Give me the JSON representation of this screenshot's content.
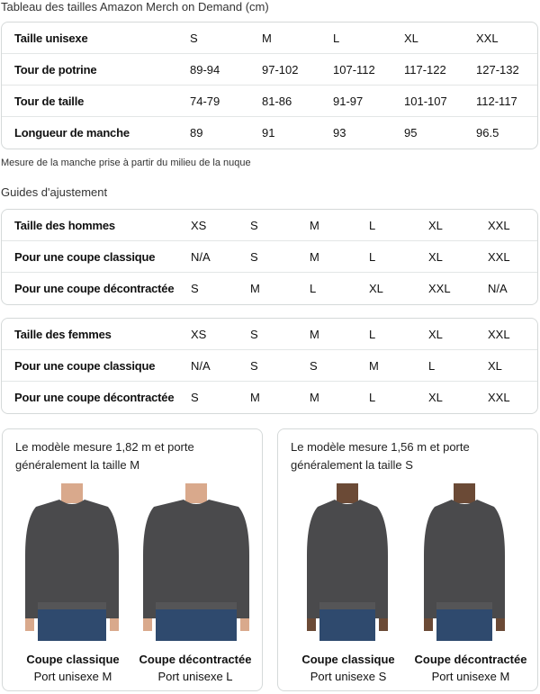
{
  "size_chart": {
    "title": "Tableau des tailles Amazon Merch on Demand (cm)",
    "rows": [
      {
        "label": "Taille unisexe",
        "values": [
          "S",
          "M",
          "L",
          "XL",
          "XXL"
        ]
      },
      {
        "label": "Tour de potrine",
        "values": [
          "89-94",
          "97-102",
          "107-112",
          "117-122",
          "127-132"
        ]
      },
      {
        "label": "Tour de taille",
        "values": [
          "74-79",
          "81-86",
          "91-97",
          "101-107",
          "112-117"
        ]
      },
      {
        "label": "Longueur de manche",
        "values": [
          "89",
          "91",
          "93",
          "95",
          "96.5"
        ]
      }
    ],
    "note": "Mesure de la manche prise à partir du milieu de la nuque"
  },
  "fit_guides": {
    "title": "Guides d'ajustement",
    "men": [
      {
        "label": "Taille des hommes",
        "values": [
          "XS",
          "S",
          "M",
          "L",
          "XL",
          "XXL"
        ]
      },
      {
        "label": "Pour une coupe classique",
        "values": [
          "N/A",
          "S",
          "M",
          "L",
          "XL",
          "XXL"
        ]
      },
      {
        "label": "Pour une coupe décontractée",
        "values": [
          "S",
          "M",
          "L",
          "XL",
          "XXL",
          "N/A"
        ]
      }
    ],
    "women": [
      {
        "label": "Taille des femmes",
        "values": [
          "XS",
          "S",
          "M",
          "L",
          "XL",
          "XXL"
        ]
      },
      {
        "label": "Pour une coupe classique",
        "values": [
          "N/A",
          "S",
          "S",
          "M",
          "L",
          "XL"
        ]
      },
      {
        "label": "Pour une coupe décontractée",
        "values": [
          "S",
          "M",
          "M",
          "L",
          "XL",
          "XXL"
        ]
      }
    ]
  },
  "models": [
    {
      "desc": "Le modèle mesure 1,82 m et porte généralement la taille M",
      "fits": [
        {
          "title": "Coupe classique",
          "size": "Port unisexe M"
        },
        {
          "title": "Coupe décontractée",
          "size": "Port unisexe L"
        }
      ]
    },
    {
      "desc": "Le modèle mesure 1,56 m et porte généralement la taille S",
      "fits": [
        {
          "title": "Coupe classique",
          "size": "Port unisexe S"
        },
        {
          "title": "Coupe décontractée",
          "size": "Port unisexe M"
        }
      ]
    }
  ],
  "colors": {
    "sweater": "#4a4a4c",
    "jeans": "#2f4a6e",
    "border": "#d5d9d9"
  }
}
